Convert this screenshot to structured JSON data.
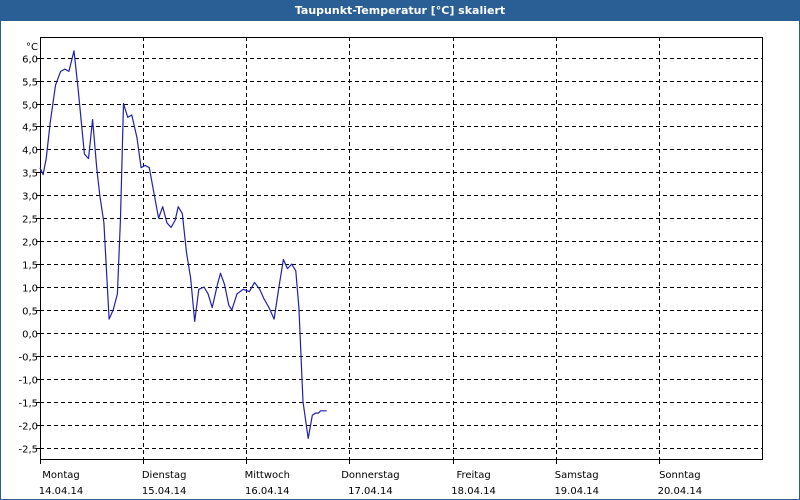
{
  "window": {
    "title": "Taupunkt-Temperatur [°C] skaliert"
  },
  "chart_data": {
    "type": "line",
    "title": "Taupunkt-Temperatur [°C] skaliert",
    "ylabel": "°C",
    "ylim": [
      -2.75,
      6.45
    ],
    "y_ticks": [
      6.0,
      5.5,
      5.0,
      4.5,
      4.0,
      3.5,
      3.0,
      2.5,
      2.0,
      1.5,
      1.0,
      0.5,
      0.0,
      -0.5,
      -1.0,
      -1.5,
      -2.0,
      -2.5
    ],
    "y_tick_labels": [
      "6,0",
      "5,5",
      "5,0",
      "4,5",
      "4,0",
      "3,5",
      "3,0",
      "2,5",
      "2,0",
      "1,5",
      "1,0",
      "0,5",
      "0,0",
      "-0,5",
      "-1,0",
      "-1,5",
      "-2,0",
      "-2,5"
    ],
    "xlim": [
      0,
      7
    ],
    "x_ticks": [
      {
        "day": "Montag",
        "date": "14.04.14"
      },
      {
        "day": "Dienstag",
        "date": "15.04.14"
      },
      {
        "day": "Mittwoch",
        "date": "16.04.14"
      },
      {
        "day": "Donnerstag",
        "date": "17.04.14"
      },
      {
        "day": "Freitag",
        "date": "18.04.14"
      },
      {
        "day": "Samstag",
        "date": "19.04.14"
      },
      {
        "day": "Sonntag",
        "date": "20.04.14"
      }
    ],
    "x_unit": "days since Montag 14.04.14 00:00",
    "grid": true,
    "colors": {
      "line": "#2020b0",
      "grid": "#000000",
      "titlebar": "#2a5f96"
    },
    "series": [
      {
        "name": "",
        "x": [
          0.0,
          0.03,
          0.06,
          0.1,
          0.15,
          0.2,
          0.24,
          0.28,
          0.33,
          0.37,
          0.4,
          0.43,
          0.47,
          0.51,
          0.55,
          0.58,
          0.62,
          0.67,
          0.71,
          0.75,
          0.78,
          0.81,
          0.85,
          0.89,
          0.94,
          0.98,
          1.02,
          1.06,
          1.1,
          1.15,
          1.19,
          1.23,
          1.27,
          1.31,
          1.34,
          1.38,
          1.42,
          1.46,
          1.5,
          1.54,
          1.59,
          1.63,
          1.67,
          1.72,
          1.75,
          1.79,
          1.83,
          1.86,
          1.91,
          1.97,
          2.03,
          2.08,
          2.13,
          2.17,
          2.22,
          2.27,
          2.32,
          2.36,
          2.4,
          2.44,
          2.48,
          2.51,
          2.55,
          2.6,
          2.64,
          2.67,
          2.7,
          2.72,
          2.75,
          2.78
        ],
        "y": [
          3.6,
          3.45,
          3.8,
          4.6,
          5.4,
          5.7,
          5.75,
          5.7,
          6.15,
          5.3,
          4.6,
          3.9,
          3.8,
          4.65,
          3.6,
          3.0,
          2.4,
          0.3,
          0.5,
          0.85,
          2.5,
          5.0,
          4.7,
          4.75,
          4.25,
          3.6,
          3.65,
          3.6,
          3.1,
          2.5,
          2.75,
          2.4,
          2.3,
          2.45,
          2.75,
          2.6,
          1.75,
          1.2,
          0.25,
          0.95,
          1.0,
          0.85,
          0.55,
          1.05,
          1.3,
          1.05,
          0.6,
          0.5,
          0.85,
          0.95,
          0.9,
          1.1,
          0.95,
          0.75,
          0.55,
          0.3,
          1.05,
          1.6,
          1.4,
          1.5,
          1.35,
          0.55,
          -1.5,
          -2.3,
          -1.8,
          -1.75,
          -1.75,
          -1.7,
          -1.7,
          -1.7
        ]
      }
    ]
  }
}
